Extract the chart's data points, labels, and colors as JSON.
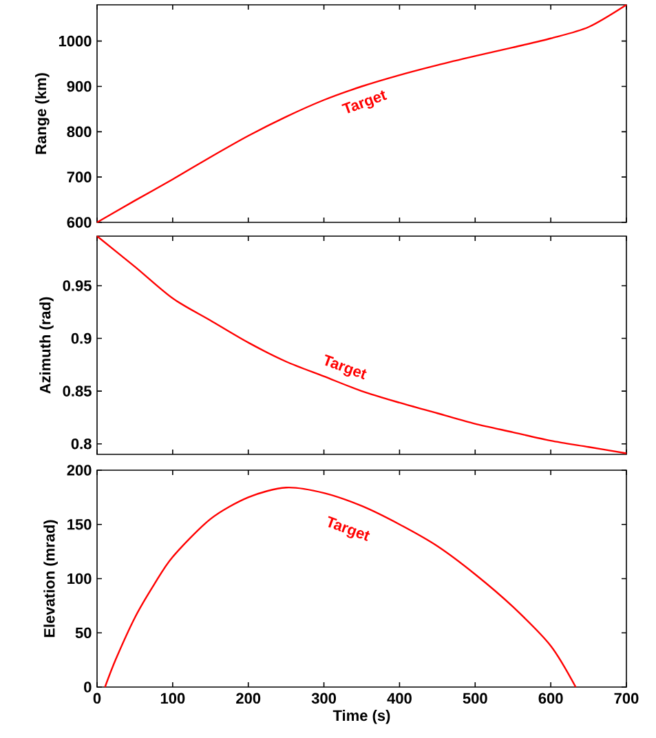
{
  "chart_data": [
    {
      "type": "line",
      "ylabel": "Range (km)",
      "xlim": [
        0,
        700
      ],
      "xticks": [
        0,
        100,
        200,
        300,
        400,
        500,
        600,
        700
      ],
      "ylim": [
        600,
        1080
      ],
      "yticks": [
        600,
        700,
        800,
        900,
        1000
      ],
      "tick_labels": "y",
      "x": [
        0,
        50,
        100,
        150,
        200,
        250,
        300,
        350,
        400,
        450,
        500,
        550,
        600,
        650,
        700
      ],
      "series": [
        {
          "color": "#ff0000",
          "values": [
            600,
            648,
            695,
            744,
            791,
            833,
            870,
            900,
            925,
            947,
            967,
            986,
            1006,
            1031,
            1080
          ]
        }
      ],
      "annotations": [
        "Target"
      ]
    },
    {
      "type": "line",
      "ylabel": "Azimuth (rad)",
      "xlim": [
        0,
        700
      ],
      "xticks": [
        0,
        100,
        200,
        300,
        400,
        500,
        600,
        700
      ],
      "ylim": [
        0.79,
        0.997
      ],
      "yticks": [
        0.8,
        0.85,
        0.9,
        0.95
      ],
      "tick_labels": "y",
      "x": [
        0,
        50,
        100,
        150,
        200,
        250,
        300,
        350,
        400,
        450,
        500,
        550,
        600,
        650,
        700
      ],
      "series": [
        {
          "color": "#ff0000",
          "values": [
            0.997,
            0.968,
            0.938,
            0.917,
            0.896,
            0.878,
            0.864,
            0.85,
            0.839,
            0.829,
            0.819,
            0.811,
            0.803,
            0.797,
            0.791
          ]
        }
      ],
      "annotations": [
        "Target"
      ]
    },
    {
      "type": "line",
      "ylabel": "Elevation (mrad)",
      "xlabel": "Time (s)",
      "xlim": [
        0,
        700
      ],
      "xticks": [
        0,
        100,
        200,
        300,
        400,
        500,
        600,
        700
      ],
      "ylim": [
        0,
        200
      ],
      "yticks": [
        0,
        50,
        100,
        150,
        200
      ],
      "x": [
        10.5,
        25,
        50,
        75,
        100,
        150,
        200,
        250,
        300,
        350,
        400,
        450,
        500,
        550,
        600,
        633
      ],
      "series": [
        {
          "color": "#ff0000",
          "values": [
            0,
            26,
            64,
            94,
            120,
            155,
            175,
            184,
            179,
            167,
            150,
            130,
            104,
            74,
            38,
            0
          ]
        }
      ],
      "annotations": [
        "Target"
      ]
    }
  ]
}
